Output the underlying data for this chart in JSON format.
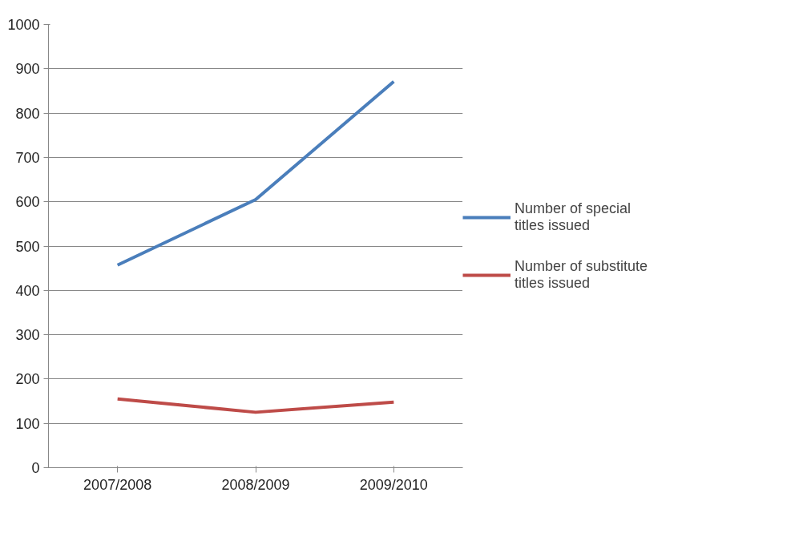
{
  "chart_data": {
    "type": "line",
    "categories": [
      "2007/2008",
      "2008/2009",
      "2009/2010"
    ],
    "series": [
      {
        "name": "Number of special titles issued",
        "color": "#4a7ebb",
        "values": [
          457,
          605,
          871
        ]
      },
      {
        "name": "Number of substitute titles issued",
        "color": "#be4b48",
        "values": [
          155,
          125,
          148
        ]
      }
    ],
    "ylim": [
      0,
      1000
    ],
    "yticks": [
      0,
      100,
      200,
      300,
      400,
      500,
      600,
      700,
      800,
      900,
      1000
    ],
    "grid": "y",
    "legend": "right",
    "marker": "none",
    "line_style": "solid"
  }
}
